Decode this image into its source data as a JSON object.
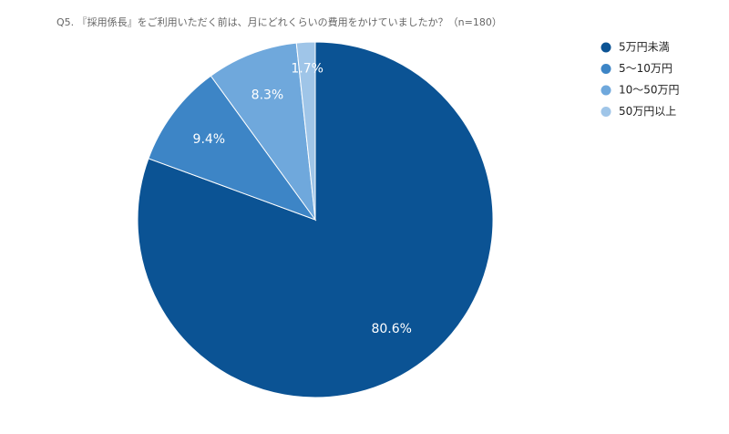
{
  "chart_data": {
    "type": "pie",
    "title": "Q5. 『採用係長』をご利用いただく前は、月にどれくらいの費用をかけていましたか？（n=180）",
    "categories": [
      "5万円未満",
      "5〜10万円",
      "10〜50万円",
      "50万円以上"
    ],
    "values": [
      80.6,
      9.4,
      8.3,
      1.7
    ],
    "value_labels": [
      "80.6%",
      "9.4%",
      "8.3%",
      "1.7%"
    ],
    "colors": [
      "#0b5394",
      "#3d85c6",
      "#6fa8dc",
      "#9fc5e8"
    ]
  }
}
